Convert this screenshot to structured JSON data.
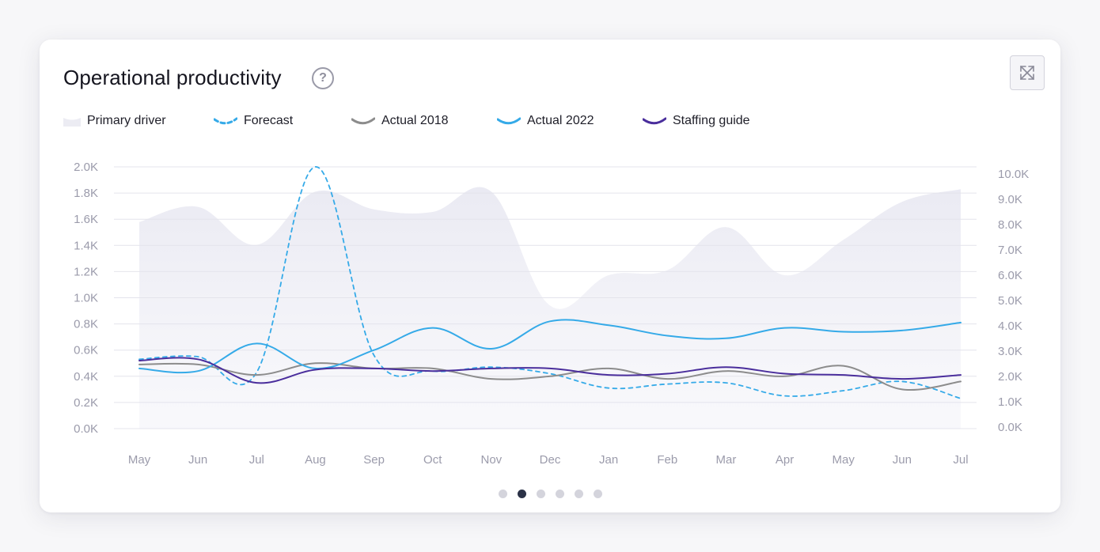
{
  "card": {
    "title": "Operational productivity",
    "help_label": "?"
  },
  "legend": [
    {
      "label": "Primary driver",
      "icon": "area-swatch-icon"
    },
    {
      "label": "Forecast",
      "icon": "dashed-line-icon"
    },
    {
      "label": "Actual 2018",
      "icon": "line-icon"
    },
    {
      "label": "Actual 2022",
      "icon": "line-icon"
    },
    {
      "label": "Staffing guide",
      "icon": "line-icon"
    }
  ],
  "colors": {
    "primary_driver": "#e8e8f1",
    "forecast": "#35aae8",
    "actual_2018": "#8c8c8c",
    "actual_2022": "#35aae8",
    "staffing_guide": "#4a2e9c",
    "grid": "#e4e4ec"
  },
  "pagination": {
    "count": 6,
    "active_index": 1
  },
  "chart_data": {
    "type": "line",
    "categories": [
      "May",
      "Jun",
      "Jul",
      "Aug",
      "Sep",
      "Oct",
      "Nov",
      "Dec",
      "Jan",
      "Feb",
      "Mar",
      "Apr",
      "May",
      "Jun",
      "Jul"
    ],
    "y_left": {
      "min": 0,
      "max": 2000,
      "ticks": [
        "0.0K",
        "0.2K",
        "0.4K",
        "0.6K",
        "0.8K",
        "1.0K",
        "1.2K",
        "1.4K",
        "1.6K",
        "1.8K",
        "2.0K"
      ]
    },
    "y_right": {
      "min": 0,
      "max": 10000,
      "ticks": [
        "0.0K",
        "1.0K",
        "2.0K",
        "3.0K",
        "4.0K",
        "5.0K",
        "6.0K",
        "7.0K",
        "8.0K",
        "9.0K",
        "10.0K"
      ]
    },
    "series": [
      {
        "name": "Primary driver",
        "type": "area",
        "axis": "right",
        "values": [
          8100,
          8700,
          7200,
          9300,
          8600,
          8500,
          9300,
          4800,
          6000,
          6200,
          7900,
          6000,
          7400,
          8900,
          9400
        ]
      },
      {
        "name": "Forecast",
        "type": "line",
        "style": "dashed",
        "axis": "left",
        "values": [
          530,
          550,
          430,
          2000,
          560,
          440,
          470,
          420,
          310,
          340,
          350,
          250,
          290,
          360,
          230
        ]
      },
      {
        "name": "Actual 2018",
        "type": "line",
        "axis": "left",
        "values": [
          490,
          490,
          410,
          500,
          460,
          460,
          380,
          400,
          460,
          380,
          440,
          400,
          480,
          300,
          360
        ]
      },
      {
        "name": "Actual 2022",
        "type": "line",
        "axis": "left",
        "values": [
          460,
          440,
          650,
          460,
          600,
          770,
          610,
          820,
          790,
          710,
          690,
          770,
          740,
          750,
          810
        ]
      },
      {
        "name": "Staffing guide",
        "type": "line",
        "axis": "left",
        "values": [
          520,
          530,
          350,
          450,
          460,
          440,
          460,
          460,
          410,
          420,
          470,
          420,
          410,
          380,
          410
        ]
      }
    ],
    "title": "Operational productivity",
    "xlabel": "",
    "ylabel": "",
    "grid": true
  }
}
